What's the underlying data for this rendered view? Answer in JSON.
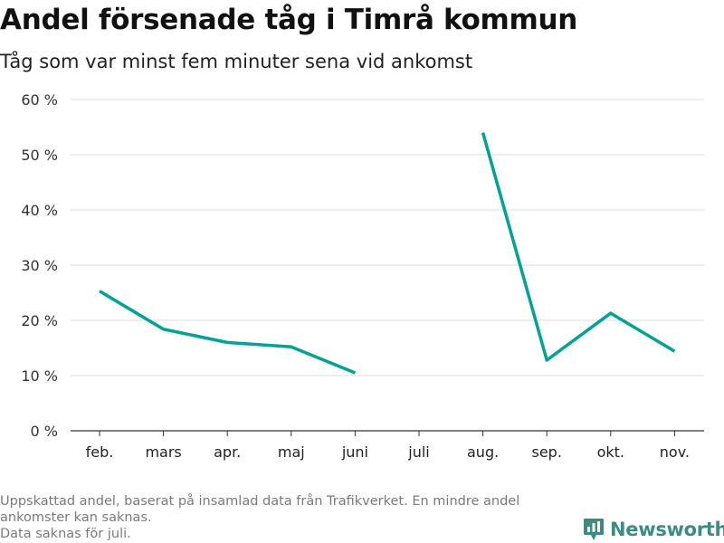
{
  "title": "Andel försenade tåg i Timrå kommun",
  "subtitle": "Tåg som var minst fem minuter sena vid ankomst",
  "footer": {
    "line1": "Uppskattad andel, baserat på insamlad data från Trafikverket. En mindre andel",
    "line2": "ankomster kan saknas.",
    "line3": "Data saknas för juli."
  },
  "brand": {
    "name": "Newsworthy",
    "icon": "newsworthy-logo-icon",
    "color": "#3d8c83"
  },
  "chart_data": {
    "type": "line",
    "categories": [
      "feb.",
      "mars",
      "apr.",
      "maj",
      "juni",
      "juli",
      "aug.",
      "sep.",
      "okt.",
      "nov."
    ],
    "series": [
      {
        "values": [
          25.3,
          18.4,
          16.0,
          15.2,
          10.5,
          null,
          54.0,
          12.8,
          21.3,
          14.4
        ],
        "color": "#00a396"
      }
    ],
    "ylim": [
      0,
      60
    ],
    "yticks": [
      0,
      10,
      20,
      30,
      40,
      50,
      60
    ],
    "ytick_labels": [
      "0 %",
      "10 %",
      "20 %",
      "30 %",
      "40 %",
      "50 %",
      "60 %"
    ],
    "xlabel": "",
    "ylabel": "",
    "grid": true,
    "legend": "none"
  }
}
